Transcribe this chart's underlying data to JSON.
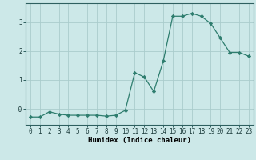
{
  "x": [
    0,
    1,
    2,
    3,
    4,
    5,
    6,
    7,
    8,
    9,
    10,
    11,
    12,
    13,
    14,
    15,
    16,
    17,
    18,
    19,
    20,
    21,
    22,
    23
  ],
  "y": [
    -0.28,
    -0.28,
    -0.1,
    -0.18,
    -0.22,
    -0.22,
    -0.22,
    -0.22,
    -0.25,
    -0.22,
    -0.05,
    1.25,
    1.1,
    0.6,
    1.65,
    3.2,
    3.2,
    3.3,
    3.2,
    2.95,
    2.45,
    1.95,
    1.95,
    1.82
  ],
  "line_color": "#2e7d6e",
  "marker": "D",
  "markersize": 2.2,
  "bg_color": "#cce8e8",
  "grid_color": "#aacccc",
  "xlabel": "Humidex (Indice chaleur)",
  "ylim": [
    -0.55,
    3.65
  ],
  "xlim": [
    -0.5,
    23.5
  ],
  "label_fontsize": 6.5,
  "tick_fontsize": 5.5
}
